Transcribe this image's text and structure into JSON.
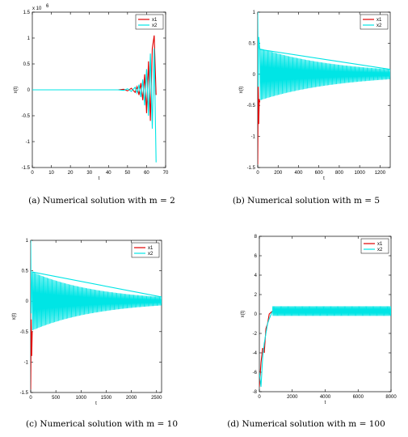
{
  "chart_data": [
    {
      "type": "line",
      "caption": "(a)  Numerical solution with m = 2",
      "xlabel": "t",
      "ylabel": "x(t)",
      "xlim": [
        0,
        70
      ],
      "ylim": [
        -1.5,
        1.5
      ],
      "xticks": [
        "0",
        "10",
        "20",
        "30",
        "40",
        "50",
        "60",
        "70"
      ],
      "yticks": [
        "-1.5",
        "-1",
        "-0.5",
        "0",
        "0.5",
        "1",
        "1.5"
      ],
      "y_multiplier": "x 10",
      "y_multiplier_exponent": "6",
      "legend": "top-right",
      "colors": {
        "x1": "#e00000",
        "x2": "#00e5e5"
      },
      "series": [
        {
          "name": "x1",
          "x": [
            0,
            40,
            45,
            48,
            50,
            52,
            54,
            55,
            56,
            57,
            58,
            59,
            60,
            61,
            62,
            63,
            64,
            65
          ],
          "y": [
            0,
            0,
            0,
            0.01,
            -0.02,
            0.03,
            -0.05,
            0.06,
            -0.1,
            0.13,
            -0.2,
            0.3,
            -0.45,
            0.55,
            -0.6,
            0.8,
            1.05,
            -0.1
          ]
        },
        {
          "name": "x2",
          "x": [
            0,
            40,
            45,
            48,
            50,
            52,
            54,
            55,
            56,
            57,
            58,
            59,
            60,
            61,
            62,
            63,
            64,
            65
          ],
          "y": [
            0,
            0,
            0,
            -0.01,
            0.02,
            -0.03,
            0.05,
            -0.06,
            0.1,
            -0.14,
            0.2,
            -0.3,
            0.4,
            -0.5,
            0.7,
            -0.75,
            0.8,
            -1.4
          ]
        }
      ]
    },
    {
      "type": "line",
      "caption": "(b)  Numerical solution with m = 5",
      "xlabel": "t",
      "ylabel": "x(t)",
      "xlim": [
        0,
        1300
      ],
      "ylim": [
        -1.5,
        1.0
      ],
      "xticks": [
        "0",
        "200",
        "400",
        "600",
        "800",
        "1000",
        "1200"
      ],
      "yticks": [
        "-1.5",
        "-1",
        "-0.5",
        "0",
        "0.5",
        "1"
      ],
      "legend": "top-right",
      "colors": {
        "x1": "#e00000",
        "x2": "#00e5e5"
      },
      "envelope": {
        "start_amplitude": 0.42,
        "end_amplitude": 0.08,
        "x_start": 20,
        "x_end": 1300
      },
      "series": [
        {
          "name": "x1",
          "x": [
            0,
            5,
            10,
            15,
            20
          ],
          "y": [
            -1.45,
            -0.2,
            -0.8,
            -0.4,
            -0.45
          ]
        },
        {
          "name": "x2",
          "x": [
            0,
            5,
            10,
            20,
            1300
          ],
          "y": [
            1.0,
            -0.2,
            0.6,
            0.4,
            0.08
          ]
        }
      ]
    },
    {
      "type": "line",
      "caption": "(c)  Numerical solution with m = 10",
      "xlabel": "t",
      "ylabel": "x(t)",
      "xlim": [
        0,
        2600
      ],
      "ylim": [
        -1.5,
        1.0
      ],
      "xticks": [
        "0",
        "500",
        "1000",
        "1500",
        "2000",
        "2500"
      ],
      "yticks": [
        "-1.5",
        "-1",
        "-0.5",
        "0",
        "0.5",
        "1"
      ],
      "legend": "top-right",
      "colors": {
        "x1": "#e00000",
        "x2": "#00e5e5"
      },
      "envelope": {
        "start_amplitude": 0.48,
        "end_amplitude": 0.07,
        "x_start": 30,
        "x_end": 2600
      },
      "series": [
        {
          "name": "x1",
          "x": [
            0,
            10,
            20,
            30
          ],
          "y": [
            -1.45,
            -0.3,
            -0.9,
            -0.5
          ]
        },
        {
          "name": "x2",
          "x": [
            0,
            10,
            30,
            2600
          ],
          "y": [
            1.0,
            -0.2,
            0.48,
            0.07
          ]
        }
      ]
    },
    {
      "type": "line",
      "caption": "(d)  Numerical solution with m = 100",
      "xlabel": "t",
      "ylabel": "x(t)",
      "xlim": [
        0,
        8000
      ],
      "ylim": [
        -8,
        8
      ],
      "xticks": [
        "0",
        "2000",
        "4000",
        "6000",
        "8000"
      ],
      "yticks": [
        "-8",
        "-6",
        "-4",
        "-2",
        "0",
        "2",
        "4",
        "6",
        "8"
      ],
      "legend": "top-right",
      "colors": {
        "x1": "#e00000",
        "x2": "#00e5e5"
      },
      "envelope": {
        "center": 0.3,
        "amplitude": 0.5,
        "x_start": 800,
        "x_end": 8000
      },
      "series": [
        {
          "name": "x1",
          "x": [
            0,
            100,
            200,
            300,
            400,
            500,
            600,
            800
          ],
          "y": [
            -7.5,
            -5,
            -3.5,
            -4,
            -1.5,
            -1,
            0,
            0.3
          ]
        },
        {
          "name": "x2",
          "x": [
            0,
            100,
            200,
            300,
            400,
            500,
            600,
            800
          ],
          "y": [
            -6,
            -7.5,
            -4.5,
            -3,
            -2,
            -1,
            -0.5,
            0.3
          ]
        }
      ]
    }
  ]
}
